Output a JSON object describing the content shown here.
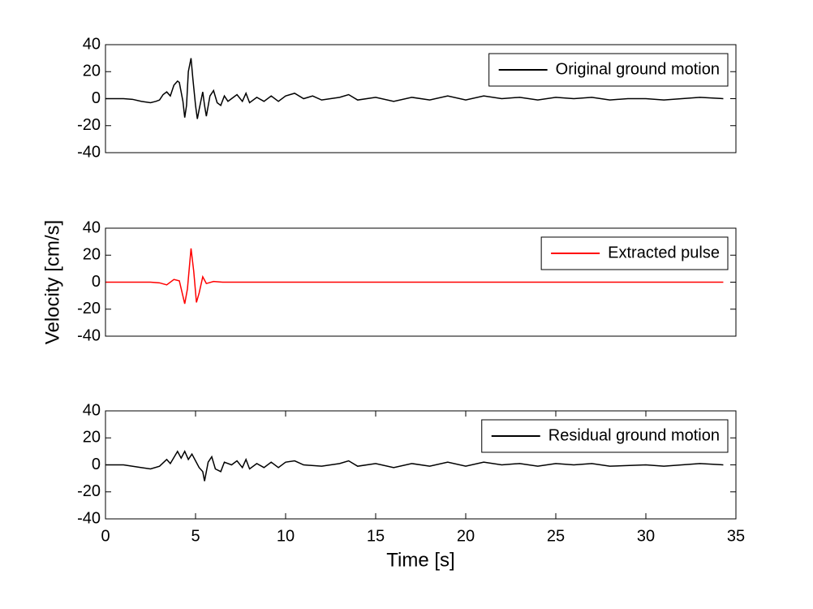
{
  "chart_data": [
    {
      "type": "line",
      "legend": "upper right",
      "series": [
        {
          "name": "Original ground motion",
          "color": "#000000",
          "x": [
            0,
            1,
            1.5,
            2,
            2.5,
            2.8,
            3,
            3.2,
            3.4,
            3.6,
            3.8,
            4.0,
            4.1,
            4.3,
            4.4,
            4.5,
            4.6,
            4.75,
            4.85,
            5.0,
            5.1,
            5.2,
            5.4,
            5.5,
            5.6,
            5.8,
            6.0,
            6.2,
            6.4,
            6.6,
            6.8,
            7.0,
            7.3,
            7.6,
            7.8,
            8.0,
            8.4,
            8.8,
            9.2,
            9.6,
            10,
            10.5,
            11,
            11.5,
            12,
            13,
            13.5,
            14,
            15,
            16,
            17,
            18,
            19,
            20,
            21,
            22,
            23,
            24,
            25,
            26,
            27,
            28,
            29,
            30,
            31,
            32,
            33,
            34.3
          ],
          "values": [
            0,
            0,
            -0.5,
            -2,
            -3,
            -2,
            -1,
            3,
            5,
            2,
            10,
            13,
            12,
            -2,
            -14,
            -5,
            20,
            30,
            15,
            -5,
            -15,
            -8,
            5,
            -5,
            -13,
            2,
            6,
            -3,
            -5,
            2,
            -2,
            0,
            3,
            -2,
            4,
            -3,
            1,
            -2,
            2,
            -2,
            2,
            4,
            0,
            2,
            -1,
            1,
            3,
            -1,
            1,
            -2,
            1,
            -1,
            2,
            -1,
            2,
            0,
            1,
            -1,
            1,
            0,
            1,
            -1,
            0,
            0,
            -1,
            0,
            1,
            0
          ]
        }
      ],
      "xlim": [
        0,
        35
      ],
      "ylim": [
        -40,
        40
      ],
      "yticks": [
        -40,
        -20,
        0,
        20,
        40
      ]
    },
    {
      "type": "line",
      "legend": "upper right",
      "y_label": "Velocity [cm/s]",
      "series": [
        {
          "name": "Extracted pulse",
          "color": "#ff0000",
          "x": [
            0,
            2.5,
            3,
            3.4,
            3.8,
            4.1,
            4.4,
            4.55,
            4.75,
            4.9,
            5.05,
            5.2,
            5.4,
            5.6,
            6,
            6.5,
            34.3
          ],
          "values": [
            0,
            0,
            -0.5,
            -2,
            2,
            1,
            -16,
            -5,
            25,
            8,
            -15,
            -8,
            4,
            -1,
            0.5,
            0,
            0
          ]
        }
      ],
      "xlim": [
        0,
        35
      ],
      "ylim": [
        -40,
        40
      ],
      "yticks": [
        -40,
        -20,
        0,
        20,
        40
      ]
    },
    {
      "type": "line",
      "legend": "upper right",
      "x_label": "Time [s]",
      "series": [
        {
          "name": "Residual ground motion",
          "color": "#000000",
          "x": [
            0,
            1,
            2,
            2.5,
            3,
            3.4,
            3.6,
            4.0,
            4.2,
            4.4,
            4.6,
            4.8,
            5.0,
            5.2,
            5.4,
            5.5,
            5.7,
            5.9,
            6.1,
            6.4,
            6.6,
            7,
            7.3,
            7.6,
            7.8,
            8,
            8.4,
            8.8,
            9.2,
            9.6,
            10,
            10.5,
            11,
            12,
            13,
            13.5,
            14,
            15,
            16,
            17,
            18,
            19,
            20,
            21,
            22,
            23,
            24,
            25,
            26,
            27,
            28,
            30,
            31,
            33,
            34.3
          ],
          "values": [
            0,
            0,
            -2,
            -3,
            -1,
            4,
            1,
            10,
            5,
            10,
            4,
            8,
            3,
            -2,
            -5,
            -12,
            2,
            6,
            -3,
            -5,
            2,
            0,
            3,
            -2,
            4,
            -3,
            1,
            -2,
            2,
            -2,
            2,
            3,
            0,
            -1,
            1,
            3,
            -1,
            1,
            -2,
            1,
            -1,
            2,
            -1,
            2,
            0,
            1,
            -1,
            1,
            0,
            1,
            -1,
            0,
            -1,
            1,
            0
          ]
        }
      ],
      "xlim": [
        0,
        35
      ],
      "ylim": [
        -40,
        40
      ],
      "yticks": [
        -40,
        -20,
        0,
        20,
        40
      ],
      "xticks": [
        0,
        5,
        10,
        15,
        20,
        25,
        30,
        35
      ]
    }
  ]
}
